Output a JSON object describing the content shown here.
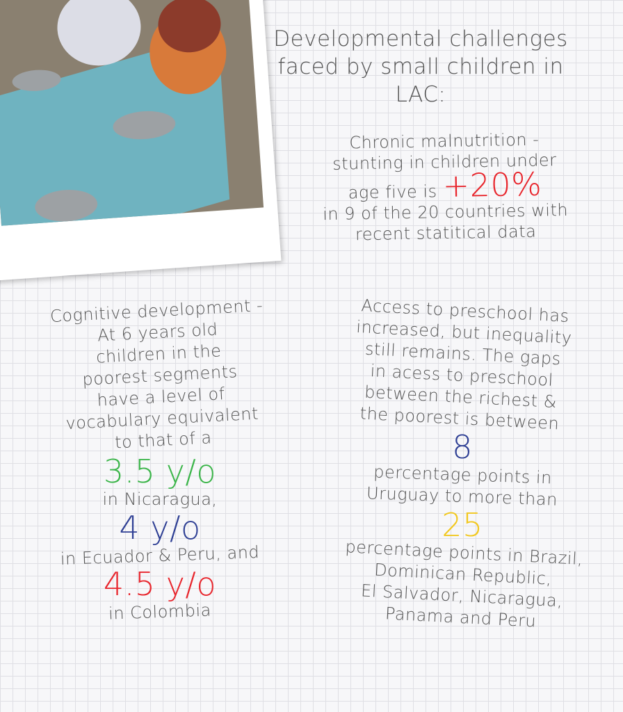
{
  "title": "Developmental challenges faced by small children in LAC:",
  "malnutrition": {
    "line1": "Chronic malnutrition -",
    "line2": "stunting in children under",
    "line3": "age five is",
    "stat": "+20%",
    "line4": "in 9 of the 20 countries with",
    "line5": "recent statitical data"
  },
  "cognitive": {
    "lines": [
      "Cognitive development -",
      "At 6 years old",
      "children in the",
      "poorest segments",
      "have a level of",
      "vocabulary equivalent",
      "to that of a"
    ],
    "stat1": "3.5 y/o",
    "after1": "in Nicaragua,",
    "stat2": "4 y/o",
    "after2": "in Ecuador & Peru, and",
    "stat3": "4.5 y/o",
    "after3": "in Colombia"
  },
  "preschool": {
    "lines": [
      "Access to preschool has",
      "increased, but inequality",
      "still remains. The gaps",
      "in acess to preschool",
      "between the richest &",
      "the poorest is between"
    ],
    "stat1": "8",
    "after1a": "percentage points in",
    "after1b": "Uruguay to more than",
    "stat2": "25",
    "after2": [
      "percentage points in Brazil,",
      "Dominican Republic,",
      "El Salvador, Nicaragua,",
      "Panama and Peru"
    ]
  },
  "colors": {
    "red": "#e8262d",
    "green": "#3cb54a",
    "blue": "#2e3f94",
    "yellow": "#f2c81e",
    "text": "#555555"
  }
}
